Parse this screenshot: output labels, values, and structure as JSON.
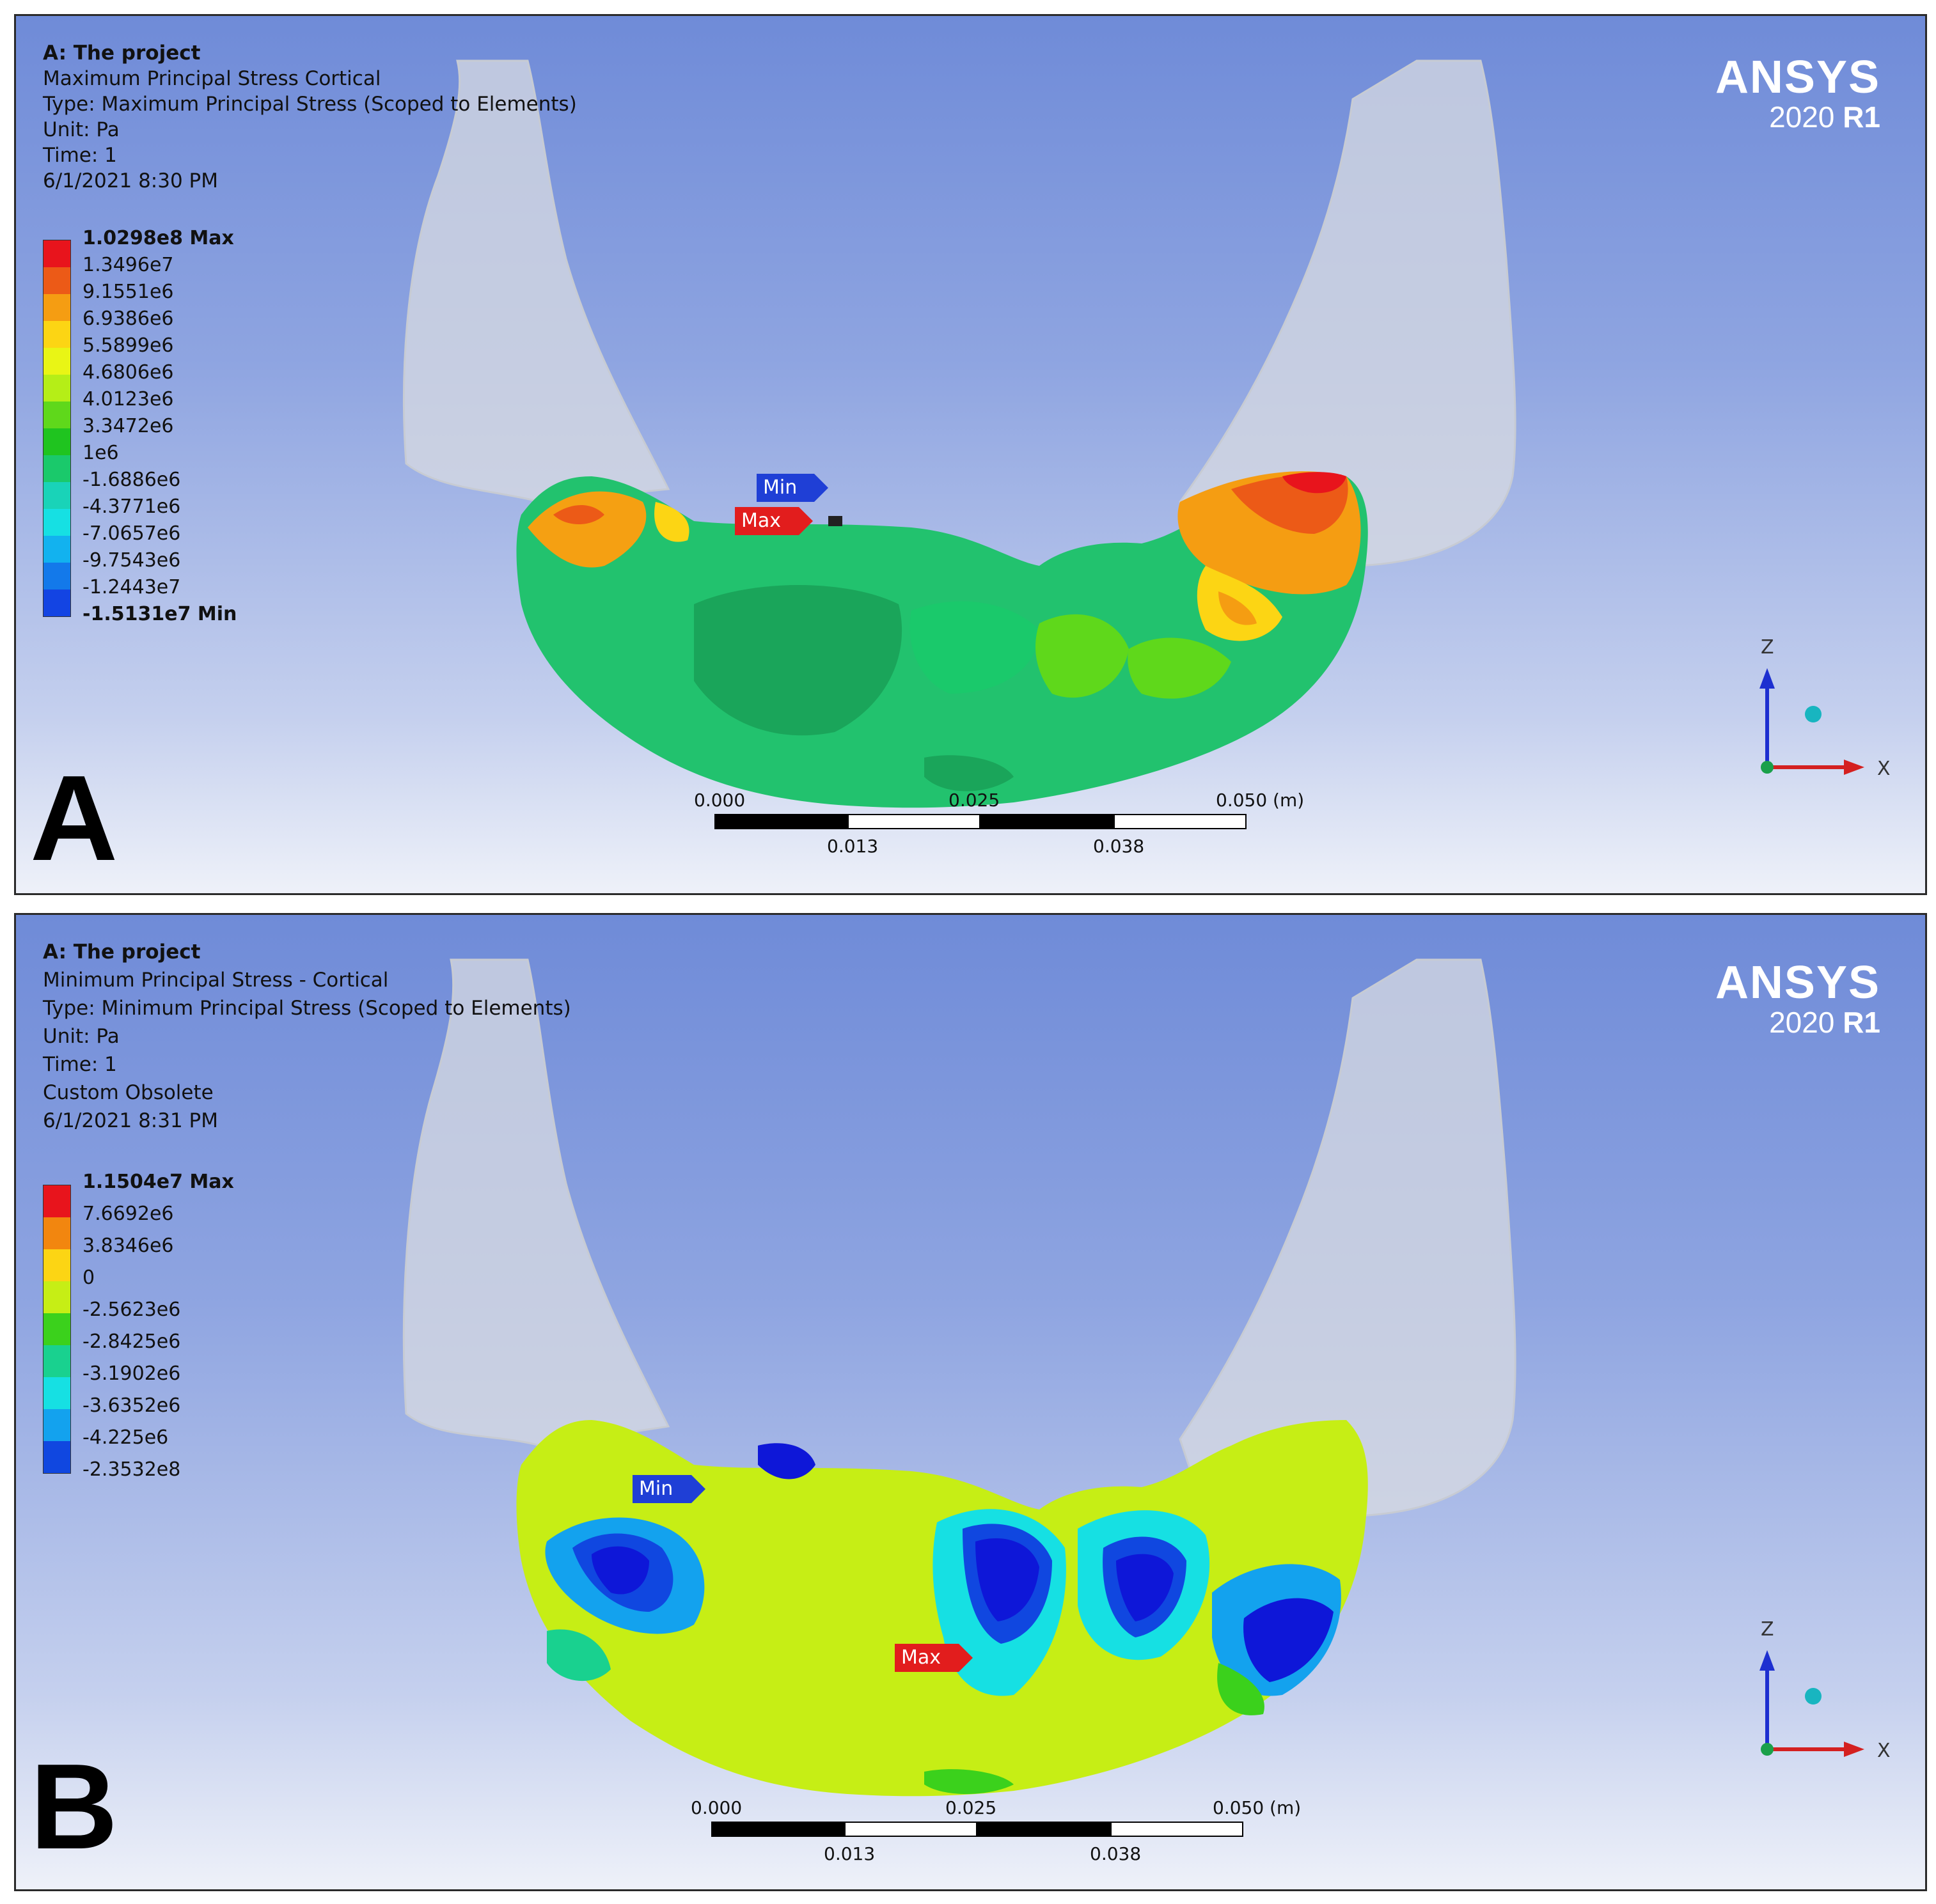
{
  "panels": [
    {
      "letter": "A",
      "project": "A: The project",
      "result_name": "Maximum Principal Stress Cortical",
      "type": "Type: Maximum Principal Stress (Scoped to Elements)",
      "unit": "Unit: Pa",
      "time": "Time: 1",
      "date": "6/1/2021 8:30 PM",
      "legend": [
        {
          "label": "1.0298e8 Max",
          "color": "#e8141c"
        },
        {
          "label": "1.3496e7",
          "color": "#ec5a17"
        },
        {
          "label": "9.1551e6",
          "color": "#f59d12"
        },
        {
          "label": "6.9386e6",
          "color": "#fcd514"
        },
        {
          "label": "5.5899e6",
          "color": "#e9f515"
        },
        {
          "label": "4.6806e6",
          "color": "#b5ee17"
        },
        {
          "label": "4.0123e6",
          "color": "#5fd81b"
        },
        {
          "label": "3.3472e6",
          "color": "#1fc41f"
        },
        {
          "label": "1e6",
          "color": "#1ac96b"
        },
        {
          "label": "-1.6886e6",
          "color": "#19d3b8"
        },
        {
          "label": "-4.3771e6",
          "color": "#16e0e3"
        },
        {
          "label": "-7.0657e6",
          "color": "#12b2ef"
        },
        {
          "label": "-9.7543e6",
          "color": "#1379ea"
        },
        {
          "label": "-1.2443e7",
          "color": "#1344e3"
        },
        {
          "label": "-1.5131e7 Min",
          "color": "#0e17d8"
        }
      ],
      "min_probe": "Min",
      "max_probe": "Max",
      "scale_top": [
        "0.000",
        "0.025",
        "0.050 (m)"
      ],
      "scale_bottom": [
        "0.013",
        "0.038"
      ]
    },
    {
      "letter": "B",
      "project": "A: The project",
      "result_name": "Minimum Principal Stress - Cortical",
      "type": "Type: Minimum Principal Stress (Scoped to Elements)",
      "unit": "Unit: Pa",
      "time": "Time: 1",
      "extra": "Custom Obsolete",
      "date": "6/1/2021 8:31 PM",
      "legend": [
        {
          "label": "1.1504e7 Max",
          "color": "#e8141c"
        },
        {
          "label": "7.6692e6",
          "color": "#f2860f"
        },
        {
          "label": "3.8346e6",
          "color": "#fcd514"
        },
        {
          "label": "0",
          "color": "#c6ee15"
        },
        {
          "label": "-2.5623e6",
          "color": "#3bd11c"
        },
        {
          "label": "-2.8425e6",
          "color": "#19d18f"
        },
        {
          "label": "-3.1902e6",
          "color": "#16e0e3"
        },
        {
          "label": "-3.6352e6",
          "color": "#13a2ee"
        },
        {
          "label": "-4.225e6",
          "color": "#1047e0"
        },
        {
          "label": "-2.3532e8",
          "color": "#0e17d8"
        }
      ],
      "min_probe": "Min",
      "max_probe": "Max",
      "scale_top": [
        "0.000",
        "0.025",
        "0.050 (m)"
      ],
      "scale_bottom": [
        "0.013",
        "0.038"
      ]
    }
  ],
  "brand": {
    "name": "ANSYS",
    "version_year": "2020",
    "version_release": "R1"
  },
  "axes": {
    "z": "Z",
    "x": "X"
  },
  "colors": {
    "background_top": "#6f8bd8",
    "background_bottom": "#eef1f9",
    "bone_ghost": "#d2d6de"
  }
}
